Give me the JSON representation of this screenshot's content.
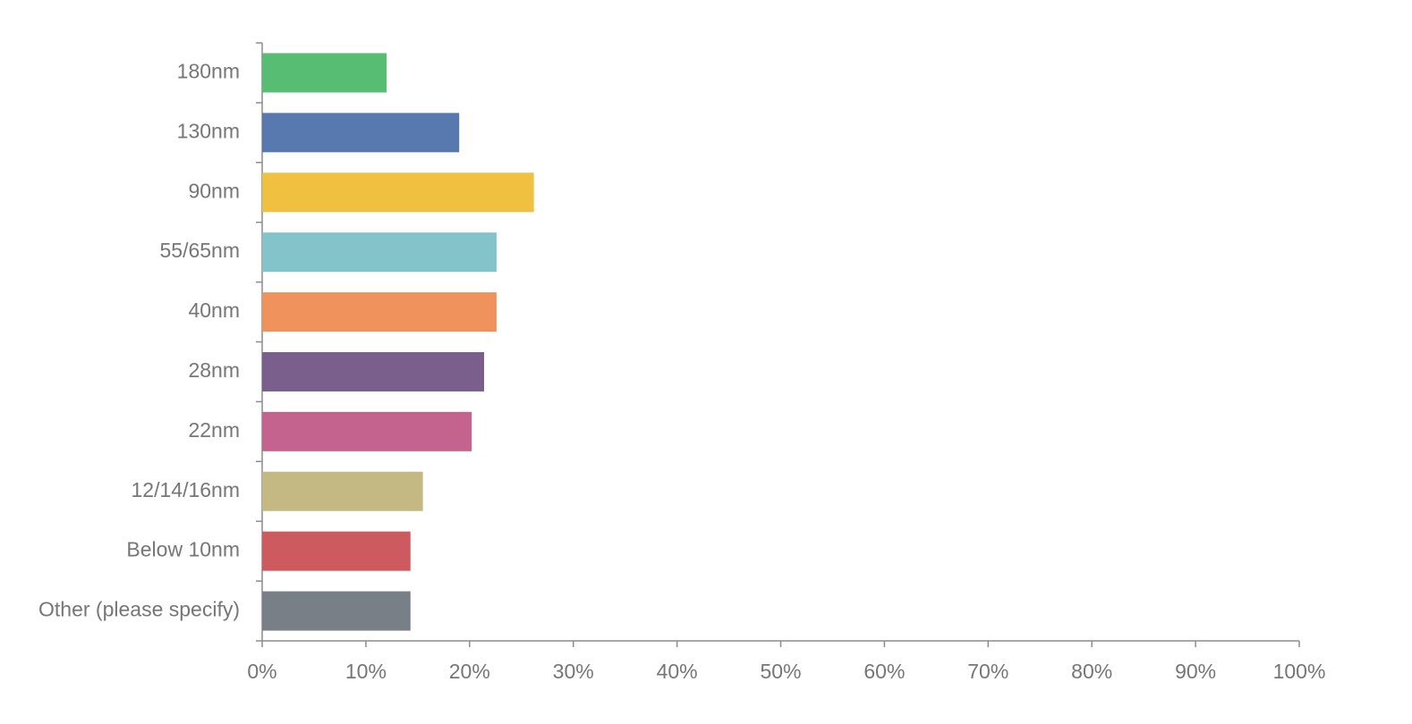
{
  "chart_data": {
    "type": "barh",
    "categories": [
      "180nm",
      "130nm",
      "90nm",
      "55/65nm",
      "40nm",
      "28nm",
      "22nm",
      "12/14/16nm",
      "Below 10nm",
      "Other (please specify)"
    ],
    "values": [
      12,
      19,
      26.2,
      22.6,
      22.6,
      21.4,
      20.2,
      15.5,
      14.3,
      14.3
    ],
    "colors": [
      "#57bd72",
      "#5779b0",
      "#f0c040",
      "#82c4ca",
      "#f0925c",
      "#7a5f8c",
      "#c4648e",
      "#c4b883",
      "#cc5a5e",
      "#797f86"
    ],
    "xlim": [
      0,
      100
    ],
    "xticks": [
      {
        "value": 0,
        "label": "0%"
      },
      {
        "value": 10,
        "label": "10%"
      },
      {
        "value": 20,
        "label": "20%"
      },
      {
        "value": 30,
        "label": "30%"
      },
      {
        "value": 40,
        "label": "40%"
      },
      {
        "value": 50,
        "label": "50%"
      },
      {
        "value": 60,
        "label": "60%"
      },
      {
        "value": 70,
        "label": "70%"
      },
      {
        "value": 80,
        "label": "80%"
      },
      {
        "value": 90,
        "label": "90%"
      },
      {
        "value": 100,
        "label": "100%"
      }
    ],
    "grid": false
  }
}
